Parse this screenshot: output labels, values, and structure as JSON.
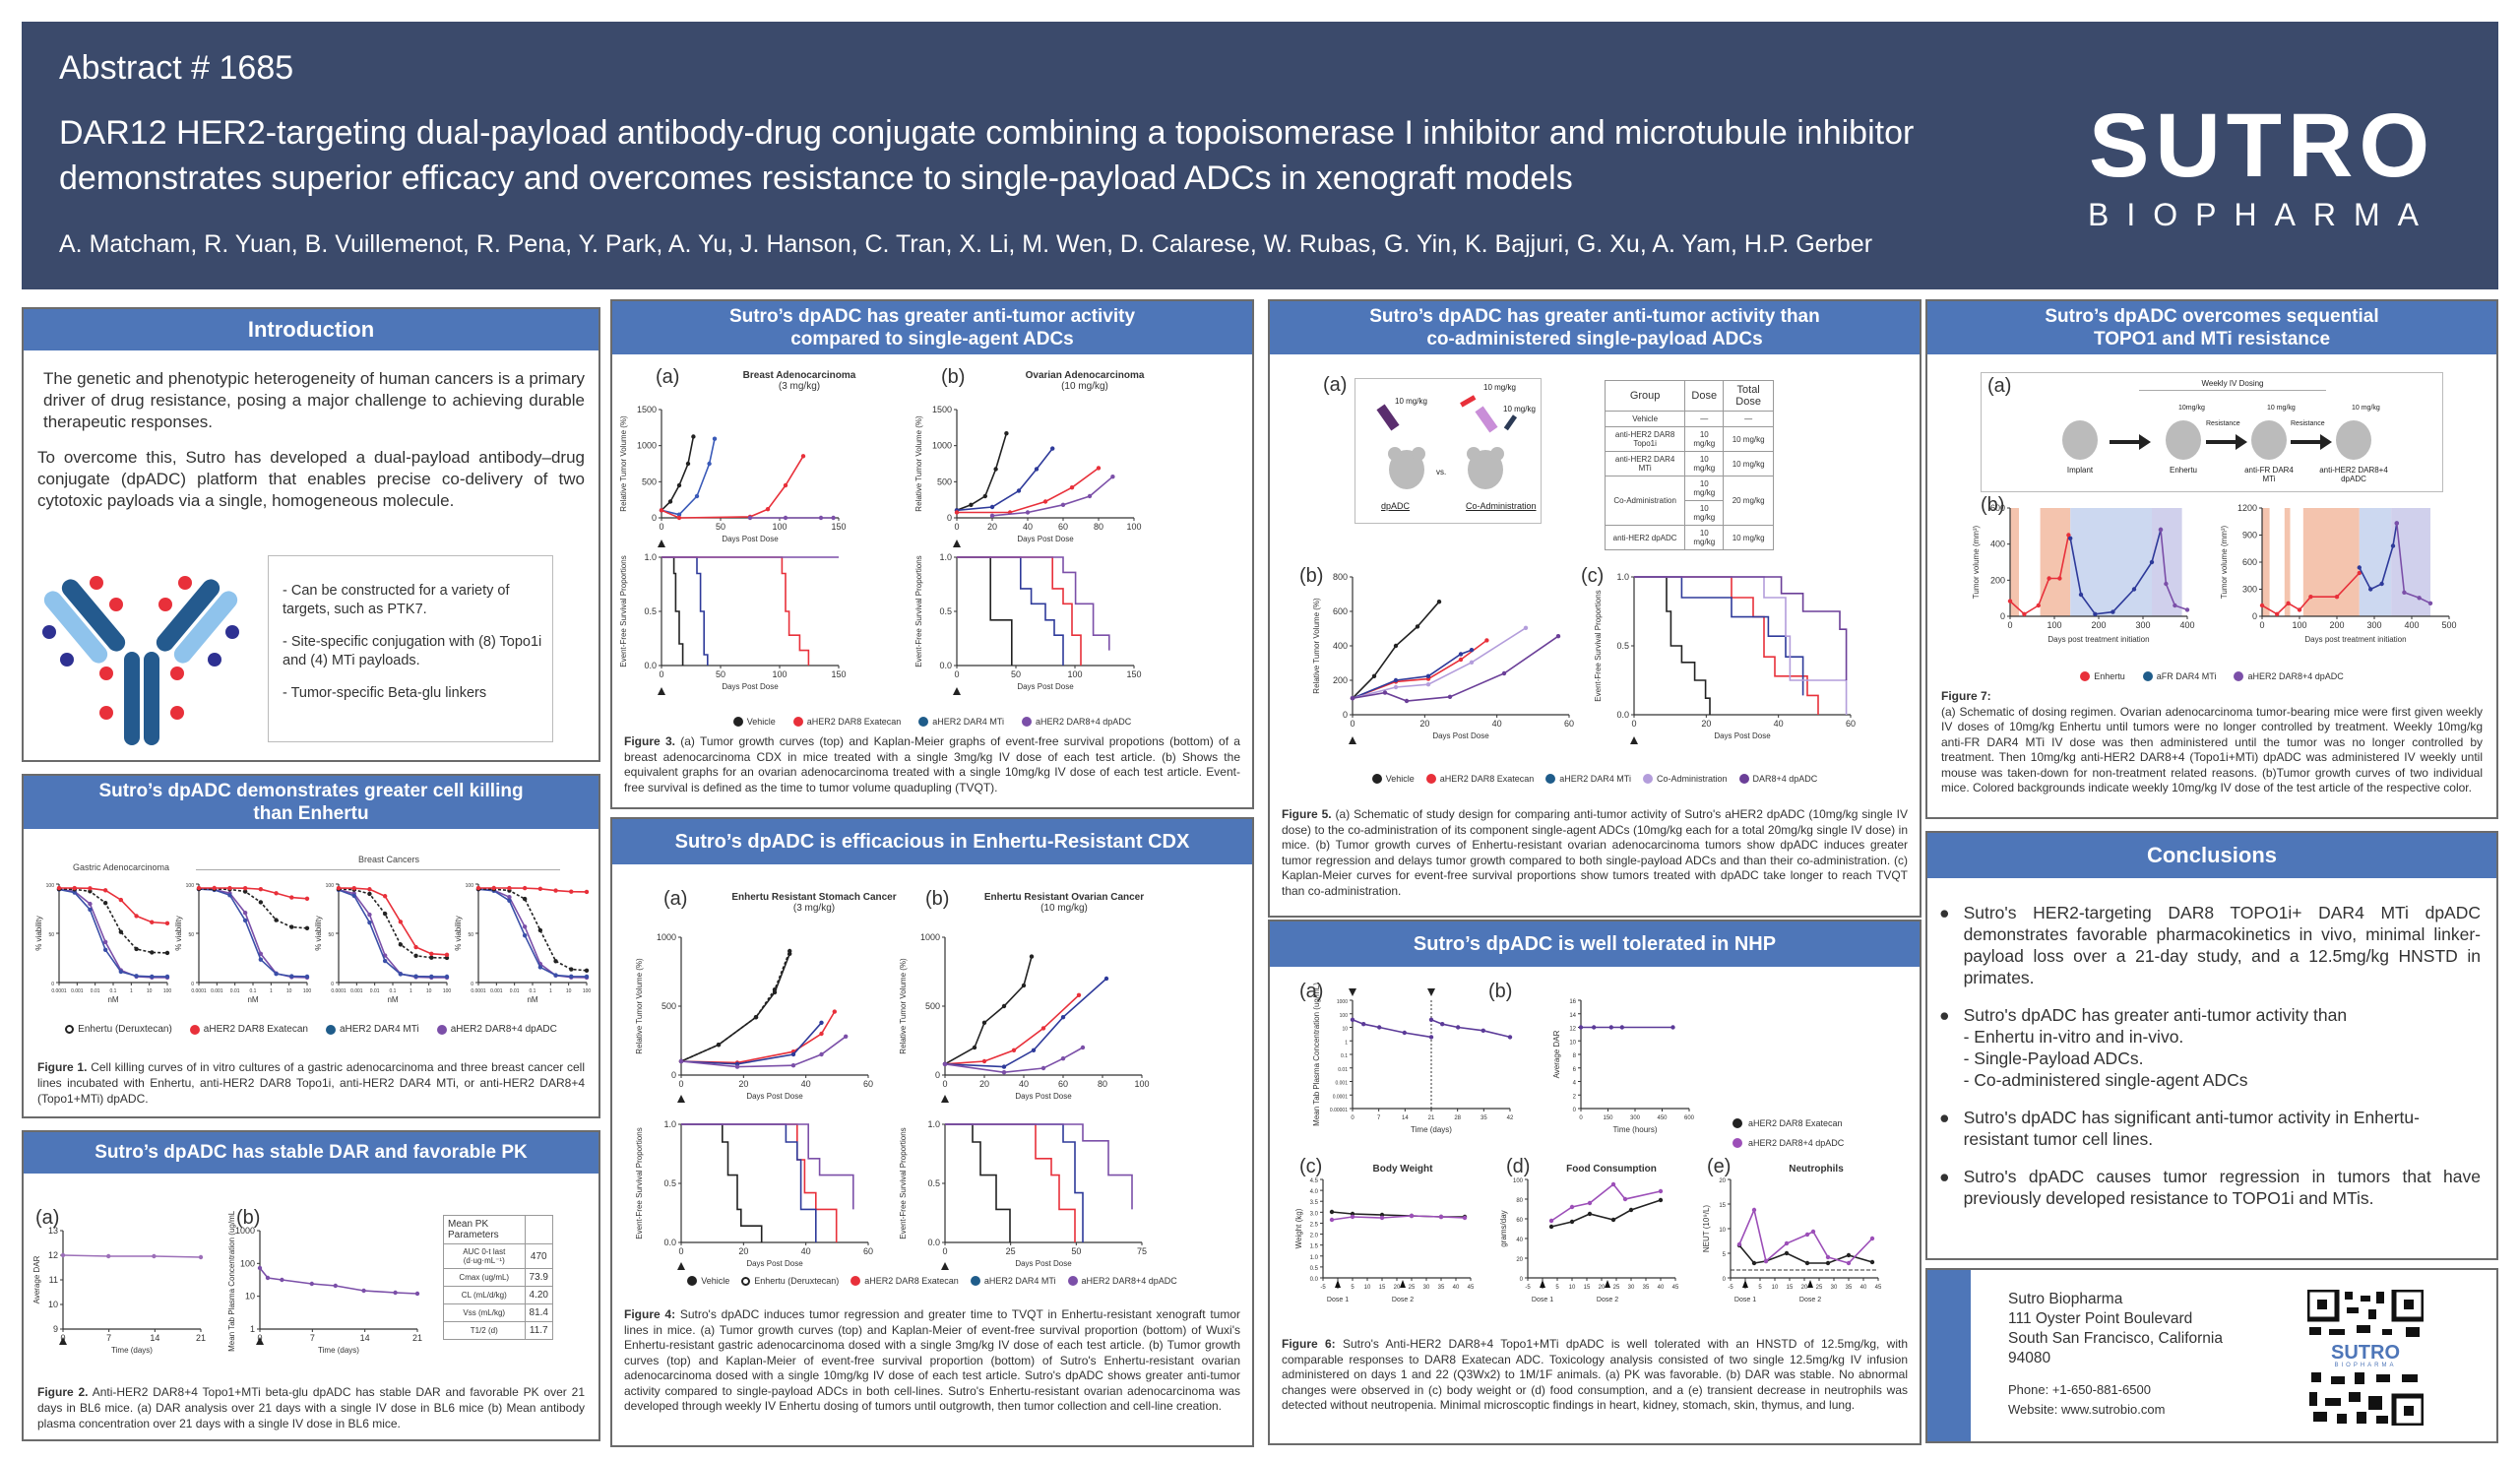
{
  "header": {
    "abstract": "Abstract # 1685",
    "title": "DAR12 HER2-targeting dual-payload antibody-drug conjugate combining a topoisomerase I inhibitor and microtubule inhibitor demonstrates superior efficacy and overcomes resistance to single-payload ADCs in xenograft models",
    "authors": "A. Matcham, R. Yuan, B. Vuillemenot, R. Pena, Y. Park, A. Yu, J. Hanson, C. Tran, X. Li, M. Wen, D. Calarese, W. Rubas, G. Yin, K. Bajjuri, G. Xu, A. Yam, H.P. Gerber",
    "logo_main": "SUTRO",
    "logo_sub": "BIOPHARMA"
  },
  "colors": {
    "header_bg": "#3b4a6b",
    "panel_title_bg": "#4e76b8",
    "red": "#e8303a",
    "blue": "#2e4fa0",
    "purple": "#7b4fa8",
    "black": "#222222",
    "lavender": "#b39ddb"
  },
  "intro": {
    "title": "Introduction",
    "p1": "The genetic and phenotypic heterogeneity of human cancers is a primary driver of drug resistance, posing a major challenge to achieving durable therapeutic responses.",
    "p2": "To overcome this, Sutro has developed a dual-payload antibody–drug conjugate (dpADC) platform that enables precise co-delivery of two cytotoxic payloads via a single, homogeneous molecule.",
    "bullets": [
      "- Can be constructed for a variety of targets, such as PTK7.",
      "- Site-specific conjugation with (8) Topo1i and (4) MTi payloads.",
      "-  Tumor-specific Beta-glu linkers"
    ]
  },
  "fig1": {
    "title": "Sutro’s dpADC demonstrates greater cell killing than Enhertu",
    "group1": "Gastric Adenocarcinoma",
    "group2": "Breast Cancers",
    "ylabel": "% viability",
    "xlabel": "nM",
    "xticks": [
      "0.0001",
      "0.001",
      "0.01",
      "0.1",
      "1",
      "10",
      "100"
    ],
    "yticks": [
      "0",
      "50",
      "100"
    ],
    "legend": [
      "Enhertu (Deruxtecan)",
      "aHER2 DAR8 Exatecan",
      "aHER2 DAR4 MTi",
      "aHER2 DAR8+4 dpADC"
    ],
    "caption_bold": "Figure 1.",
    "caption": " Cell killing curves of in vitro cultures of a gastric adenocarcinoma and three breast cancer cell lines incubated with Enhertu, anti-HER2 DAR8 Topo1i, anti-HER2 DAR4 MTi, or anti-HER2 DAR8+4 (Topo1+MTi) dpADC."
  },
  "fig2": {
    "title": "Sutro’s dpADC has stable DAR and favorable PK",
    "a": "(a)",
    "b": "(b)",
    "a_ylabel": "Average DAR",
    "a_yticks": [
      "9",
      "10",
      "11",
      "12",
      "13"
    ],
    "xticks": [
      "0",
      "7",
      "14",
      "21"
    ],
    "xlabel": "Time (days)",
    "b_ylabel": "Mean Tab Plasma Concentration (ug/mL)",
    "b_yticks": [
      "1",
      "10",
      "100",
      "1000"
    ],
    "table": [
      [
        "Mean PK Parameters",
        ""
      ],
      [
        "AUC 0-t last (d·ug·mL⁻¹)",
        "470"
      ],
      [
        "Cmax (ug/mL)",
        "73.9"
      ],
      [
        "CL (mL/d/kg)",
        "4.20"
      ],
      [
        "Vss (mL/kg)",
        "81.4"
      ],
      [
        "T1/2 (d)",
        "11.7"
      ]
    ],
    "caption_bold": "Figure 2.",
    "caption": " Anti-HER2 DAR8+4 Topo1+MTi beta-glu dpADC has stable DAR and favorable PK over 21 days in BL6 mice. (a) DAR analysis over 21 days with a single IV dose in BL6 mice (b) Mean antibody plasma concentration over 21 days with a single IV dose in BL6 mice."
  },
  "fig3": {
    "title": "Sutro’s dpADC has greater anti-tumor activity compared to single-agent ADCs",
    "a": "(a)",
    "b": "(b)",
    "a_title": "Breast Adenocarcinoma",
    "a_dose": "(3 mg/kg)",
    "b_title": "Ovarian Adenocarcinoma",
    "b_dose": "(10 mg/kg)",
    "ylabel_top": "Relative Tumor Volume (%)",
    "ylabel_bottom": "Event-Free Survival Proportions",
    "xlabel": "Days Post Dose",
    "a_xticks": [
      "0",
      "50",
      "100",
      "150"
    ],
    "b_xticks_top": [
      "0",
      "20",
      "40",
      "60",
      "80",
      "100"
    ],
    "b_xticks_bottom": [
      "0",
      "50",
      "100",
      "150"
    ],
    "yticks_top": [
      "0",
      "500",
      "1000",
      "1500"
    ],
    "yticks_bottom": [
      "0.0",
      "0.5",
      "1.0"
    ],
    "legend": [
      "Vehicle",
      "aHER2 DAR8 Exatecan",
      "aHER2 DAR4 MTi",
      "aHER2 DAR8+4 dpADC"
    ],
    "caption_bold": "Figure 3.",
    "caption": " (a) Tumor growth curves (top) and Kaplan-Meier graphs of event-free survival propotions (bottom) of a breast adenocarcinoma CDX in mice treated with a single 3mg/kg IV dose of each test article. (b) Shows the equivalent graphs for an ovarian adenocarcinoma treated with a single 10mg/kg IV dose of each test article. Event-free survival is defined as the time to tumor volume quadupling (TVQT)."
  },
  "fig4": {
    "title": "Sutro’s dpADC is efficacious in Enhertu-Resistant CDX",
    "a": "(a)",
    "b": "(b)",
    "a_title": "Enhertu Resistant Stomach Cancer",
    "a_dose": "(3 mg/kg)",
    "b_title": "Enhertu Resistant Ovarian Cancer",
    "b_dose": "(10 mg/kg)",
    "ylabel_top": "Relative Tumor Volume (%)",
    "ylabel_bottom": "Event-Free Survival Proportions",
    "xlabel": "Days Post Dose",
    "a_xticks_top": [
      "0",
      "20",
      "40",
      "60"
    ],
    "b_xticks_top": [
      "0",
      "20",
      "40",
      "60",
      "80",
      "100"
    ],
    "a_xticks_bottom": [
      "0",
      "20",
      "40",
      "60"
    ],
    "b_xticks_bottom": [
      "0",
      "25",
      "50",
      "75"
    ],
    "a_yticks_top": [
      "0",
      "500",
      "1000"
    ],
    "b_yticks_top": [
      "0",
      "500",
      "1000"
    ],
    "yticks_bottom": [
      "0.0",
      "0.5",
      "1.0"
    ],
    "legend": [
      "Vehicle",
      "Enhertu (Deruxtecan)",
      "aHER2 DAR8 Exatecan",
      "aHER2 DAR4 MTi",
      "aHER2 DAR8+4 dpADC"
    ],
    "caption_bold": "Figure 4:",
    "caption": " Sutro's dpADC induces tumor regression and greater time to TVQT in Enhertu-resistant xenograft tumor lines in mice. (a) Tumor growth curves (top) and Kaplan-Meier of event-free survival proportion (bottom) of Wuxi's Enhertu-resistant gastric adenocarcinoma dosed with a single 3mg/kg IV dose of each test article. (b) Tumor growth curves (top) and Kaplan-Meier of event-free survival proportion (bottom) of Sutro's Enhertu-resistant ovarian adenocarcinoma dosed with a single 10mg/kg IV dose of each test article. Sutro's dpADC shows greater anti-tumor activity compared to single-payload ADCs in both cell-lines. Sutro's Enhertu-resistant ovarian adenocarcinoma was developed through weekly IV Enhertu dosing of tumors until outgrowth, then tumor collection and cell-line creation."
  },
  "fig5": {
    "title": "Sutro’s dpADC has greater anti-tumor activity than co-administered single-payload ADCs",
    "a": "(a)",
    "b": "(b)",
    "c": "(c)",
    "schematic": {
      "dose1": "10 mg/kg",
      "dose2": "10 mg/kg",
      "dose3": "10 mg/kg",
      "vs": "vs.",
      "left": "dpADC",
      "right": "Co-Administration"
    },
    "table_head": [
      "Group",
      "Dose",
      "Total Dose"
    ],
    "table_rows": [
      [
        "Vehicle",
        "—",
        "—"
      ],
      [
        "anti-HER2 DAR8 Topo1i",
        "10 mg/kg",
        "10 mg/kg"
      ],
      [
        "anti-HER2 DAR4 MTi",
        "10 mg/kg",
        "10 mg/kg"
      ],
      [
        "Co-Administration",
        "10 mg/kg",
        "20 mg/kg"
      ],
      [
        "",
        "10 mg/kg",
        ""
      ],
      [
        "anti-HER2 dpADC",
        "10 mg/kg",
        "10 mg/kg"
      ]
    ],
    "b_ylabel": "Relative Tumor Volume (%)",
    "b_yticks": [
      "0",
      "200",
      "400",
      "600",
      "800"
    ],
    "c_ylabel": "Event-Free Survival Proportions",
    "c_yticks": [
      "0.0",
      "0.5",
      "1.0"
    ],
    "xticks": [
      "0",
      "20",
      "40",
      "60"
    ],
    "xlabel": "Days Post Dose",
    "legend": [
      "Vehicle",
      "aHER2 DAR8 Exatecan",
      "aHER2 DAR4 MTi",
      "Co-Administration",
      "DAR8+4 dpADC"
    ],
    "caption_bold": "Figure 5.",
    "caption": " (a) Schematic of study design for comparing anti-tumor activity of Sutro's aHER2 dpADC (10mg/kg single IV dose) to the co-administration of its component single-agent ADCs (10mg/kg each for a total 20mg/kg single IV dose) in mice. (b) Tumor growth curves of Enhertu-resistant ovarian adenocarcinoma tumors show dpADC induces greater tumor regression and delays tumor growth compared to both single-payload ADCs and than their co-administration. (c) Kaplan-Meier curves for event-free survival proportions show tumors treated with dpADC take longer to reach TVQT than co-administration."
  },
  "fig6": {
    "title": "Sutro’s dpADC is well tolerated in NHP",
    "a": "(a)",
    "b": "(b)",
    "c": "(c)",
    "d": "(d)",
    "e": "(e)",
    "a_ylabel": "Mean Tab Plasma Concentration (ug/mL)",
    "a_yticks": [
      "0.00001",
      "0.0001",
      "0.001",
      "0.01",
      "0.1",
      "1",
      "10",
      "100",
      "1000"
    ],
    "a_xticks": [
      "0",
      "7",
      "14",
      "21",
      "28",
      "35",
      "42"
    ],
    "a_xlabel": "Time (days)",
    "b_ylabel": "Average DAR",
    "b_yticks": [
      "0",
      "2",
      "4",
      "6",
      "8",
      "10",
      "12",
      "14",
      "16"
    ],
    "b_xticks": [
      "0",
      "150",
      "300",
      "450",
      "600"
    ],
    "b_xlabel": "Time (hours)",
    "legend": [
      "aHER2 DAR8 Exatecan",
      "aHER2 DAR8+4 dpADC"
    ],
    "c_title": "Body Weight",
    "c_ylabel": "Weight (kg)",
    "c_yticks": [
      "0.0",
      "0.5",
      "1.0",
      "1.5",
      "2.0",
      "2.5",
      "3.0",
      "3.5",
      "4.0",
      "4.5"
    ],
    "d_title": "Food Consumption",
    "d_ylabel": "grams/day",
    "d_yticks": [
      "0",
      "20",
      "40",
      "60",
      "80",
      "100"
    ],
    "e_title": "Neutrophils",
    "e_ylabel": "NEUT (10⁹/L)",
    "e_yticks": [
      "0",
      "5",
      "10",
      "15",
      "20"
    ],
    "xticks": [
      "-5",
      "0",
      "5",
      "10",
      "15",
      "20",
      "25",
      "30",
      "35",
      "40",
      "45"
    ],
    "xlabel": "Time (days)",
    "dose1": "Dose 1",
    "dose2": "Dose 2",
    "caption_bold": "Figure 6:",
    "caption": " Sutro's Anti-HER2 DAR8+4 Topo1+MTi dpADC is well tolerated with an HNSTD of 12.5mg/kg, with comparable responses to DAR8 Exatecan ADC. Toxicology analysis consisted of two single 12.5mg/kg IV infusion administered on days 1 and 22 (Q3Wx2) to 1M/1F animals. (a) PK was favorable. (b) DAR was stable. No abnormal changes were observed in (c) body weight or (d) food consumption, and a (e) transient decrease in neutrophils was detected without neutropenia. Minimal microscoptic findings in heart, kidney, stomach, skin, thymus, and lung."
  },
  "fig7": {
    "title": "Sutro’s dpADC overcomes sequential TOPO1 and MTi resistance",
    "a": "(a)",
    "b": "(b)",
    "weekly": "Weekly IV Dosing",
    "steps": [
      "Implant",
      "Enhertu",
      "anti-FR DAR4 MTi",
      "anti-HER2 DAR8+4 dpADC"
    ],
    "doses": [
      "10mg/kg",
      "10 mg/kg",
      "10 mg/kg"
    ],
    "resistance": "Resistance",
    "ylabel": "Tumor volume (mm³)",
    "xlabel": "Days post treatment initiation",
    "m1_yticks": [
      "0",
      "200",
      "400",
      "600"
    ],
    "m1_xticks": [
      "0",
      "100",
      "200",
      "300",
      "400"
    ],
    "m2_yticks": [
      "0",
      "300",
      "600",
      "900",
      "1200"
    ],
    "m2_xticks": [
      "0",
      "100",
      "200",
      "300",
      "400",
      "500"
    ],
    "legend": [
      "Enhertu",
      "aFR DAR4 MTi",
      "aHER2 DAR8+4 dpADC"
    ],
    "caption_bold": "Figure 7:",
    "caption": "(a) Schematic of dosing regimen. Ovarian adenocarcinoma tumor-bearing mice were first given weekly IV doses of 10mg/kg Enhertu until tumors were no longer controlled by treatment. Weekly 10mg/kg anti-FR DAR4 MTi IV dose was then administered until the tumor was no longer controlled by treatment. Then 10mg/kg anti-HER2 DAR8+4 (Topo1i+MTi) dpADC was administered IV weekly until mouse was taken-down for non-treatment related reasons. (b)Tumor growth curves of two individual mice. Colored backgrounds indicate weekly 10mg/kg IV dose of the test article of the respective color."
  },
  "conclusions": {
    "title": "Conclusions",
    "b1": "Sutro's HER2-targeting DAR8 TOPO1i+ DAR4 MTi dpADC demonstrates favorable pharmacokinetics in vivo, minimal linker-payload loss over a 21-day study, and a 12.5mg/kg HNSTD in primates.",
    "b2": "Sutro's dpADC has greater anti-tumor activity than",
    "b2_sub": [
      "- Enhertu in-vitro and in-vivo.",
      "- Single-Payload ADCs.",
      "- Co-administered single-agent ADCs"
    ],
    "b3": "Sutro's dpADC has significant anti-tumor activity in Enhertu-resistant tumor cell lines.",
    "b4": "Sutro's dpADC causes tumor regression in tumors that have previously developed resistance to TOPO1i and MTis."
  },
  "contact": {
    "company": "Sutro Biopharma",
    "address1": "111 Oyster Point Boulevard",
    "address2": "South San Francisco, California",
    "zip": "94080",
    "phone": "Phone: +1-650-881-6500",
    "website": "Website: www.sutrobio.com",
    "qr_logo": "SUTRO",
    "qr_sub": "BIOPHARMA"
  }
}
